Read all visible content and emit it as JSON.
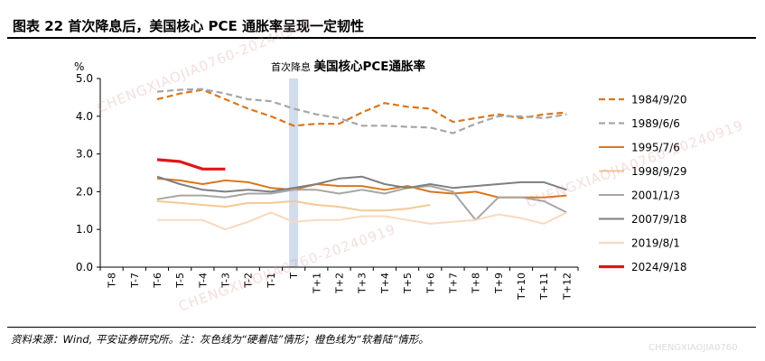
{
  "figure": {
    "title": "图表 22   首次降息后，美国核心 PCE 通胀率呈现一定韧性",
    "source_note": "资料来源：Wind, 平安证券研究所。注：灰色线为“硬着陆”情形；橙色线为“软着陆”情形。",
    "watermarks": [
      "CHENGXIAOJIA0760-20240919",
      "CHENGXIAOJIA0760-20240919",
      "CHENGXIAOJIA0760-20240919",
      "CHENGXIAOJIA0760"
    ]
  },
  "chart_data": {
    "type": "line",
    "title_prefix": "首次降息",
    "title_main": "美国核心PCE通胀率",
    "ylabel": "%",
    "ylim": [
      0,
      5
    ],
    "yticks": [
      "0.0",
      "1.0",
      "2.0",
      "3.0",
      "4.0",
      "5.0"
    ],
    "categories": [
      "T-8",
      "T-7",
      "T-6",
      "T-5",
      "T-4",
      "T-3",
      "T-2",
      "T-1",
      "T",
      "T+1",
      "T+2",
      "T+3",
      "T+4",
      "T+5",
      "T+6",
      "T+7",
      "T+8",
      "T+9",
      "T+10",
      "T+11",
      "T+12"
    ],
    "highlight_category": "T",
    "legend_position": "right",
    "series": [
      {
        "name": "1984/9/20",
        "color": "#d9761e",
        "dash": "dashed",
        "width": 2.2,
        "values": [
          null,
          null,
          4.45,
          4.6,
          4.7,
          4.45,
          4.2,
          4.0,
          3.75,
          3.8,
          3.8,
          4.1,
          4.35,
          4.25,
          4.2,
          3.85,
          3.95,
          4.05,
          3.95,
          4.05,
          4.1
        ]
      },
      {
        "name": "1989/6/6",
        "color": "#a6a6a6",
        "dash": "dashed",
        "width": 2.2,
        "values": [
          null,
          null,
          4.65,
          4.7,
          4.72,
          4.6,
          4.45,
          4.4,
          4.2,
          4.05,
          3.95,
          3.75,
          3.75,
          3.72,
          3.7,
          3.55,
          3.8,
          4.0,
          4.0,
          3.95,
          4.05
        ]
      },
      {
        "name": "1995/7/6",
        "color": "#d9761e",
        "dash": "solid",
        "width": 2,
        "values": [
          null,
          null,
          2.35,
          2.3,
          2.2,
          2.3,
          2.25,
          2.1,
          2.05,
          2.2,
          2.15,
          2.15,
          2.05,
          2.15,
          2.0,
          1.95,
          2.0,
          1.85,
          1.85,
          1.85,
          1.9
        ]
      },
      {
        "name": "1998/9/29",
        "color": "#f4c896",
        "dash": "solid",
        "width": 2,
        "values": [
          null,
          null,
          1.75,
          1.7,
          1.65,
          1.6,
          1.7,
          1.7,
          1.75,
          1.65,
          1.6,
          1.5,
          1.5,
          1.55,
          1.65,
          null,
          null,
          null,
          null,
          null,
          null
        ]
      },
      {
        "name": "2001/1/3",
        "color": "#a6a6a6",
        "dash": "solid",
        "width": 2,
        "values": [
          null,
          null,
          1.8,
          1.9,
          1.9,
          1.85,
          1.95,
          1.95,
          2.05,
          2.05,
          1.95,
          2.05,
          1.95,
          2.1,
          2.15,
          2.0,
          1.25,
          1.85,
          1.85,
          1.75,
          1.45
        ]
      },
      {
        "name": "2007/9/18",
        "color": "#7f7f7f",
        "dash": "solid",
        "width": 2,
        "values": [
          null,
          null,
          2.4,
          2.2,
          2.05,
          2.0,
          2.05,
          2.0,
          2.1,
          2.2,
          2.35,
          2.4,
          2.2,
          2.1,
          2.2,
          2.1,
          2.15,
          2.2,
          2.25,
          2.25,
          2.05
        ]
      },
      {
        "name": "2019/8/1",
        "color": "#f8d9bd",
        "dash": "solid",
        "width": 2,
        "values": [
          null,
          null,
          1.25,
          1.25,
          1.25,
          1.0,
          1.2,
          1.45,
          1.2,
          1.25,
          1.25,
          1.35,
          1.35,
          1.25,
          1.15,
          1.2,
          1.25,
          1.4,
          1.3,
          1.15,
          1.45
        ]
      },
      {
        "name": "2024/9/18",
        "color": "#e2141b",
        "dash": "solid",
        "width": 3.2,
        "values": [
          null,
          null,
          2.85,
          2.8,
          2.6,
          2.6,
          null,
          null,
          null,
          null,
          null,
          null,
          null,
          null,
          null,
          null,
          null,
          null,
          null,
          null,
          null
        ]
      }
    ]
  }
}
